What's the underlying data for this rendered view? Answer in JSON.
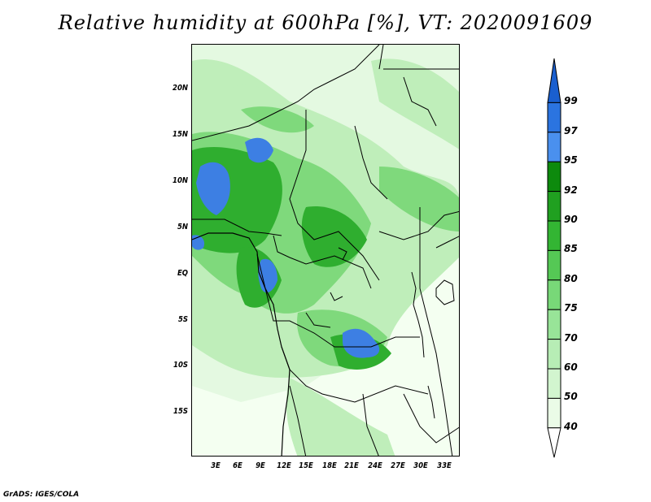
{
  "title": "Relative humidity at 600hPa [%], VT: 2020091609",
  "footer": "GrADS: IGES/COLA",
  "map": {
    "lat_labels": [
      "20N",
      "15N",
      "10N",
      "5N",
      "EQ",
      "5S",
      "10S",
      "15S"
    ],
    "lon_labels": [
      "3E",
      "6E",
      "9E",
      "12E",
      "15E",
      "18E",
      "21E",
      "24E",
      "27E",
      "30E",
      "33E"
    ]
  },
  "colorbar": {
    "levels": [
      "99",
      "97",
      "95",
      "92",
      "90",
      "85",
      "80",
      "75",
      "70",
      "60",
      "50",
      "40"
    ],
    "colors": [
      "#1a5fcf",
      "#2b74e0",
      "#4a90ee",
      "#0d8a0d",
      "#20a020",
      "#33b533",
      "#55c855",
      "#78d878",
      "#98e498",
      "#b7edb5",
      "#d2f5cf",
      "#eafbe7",
      "#ffffff"
    ]
  }
}
